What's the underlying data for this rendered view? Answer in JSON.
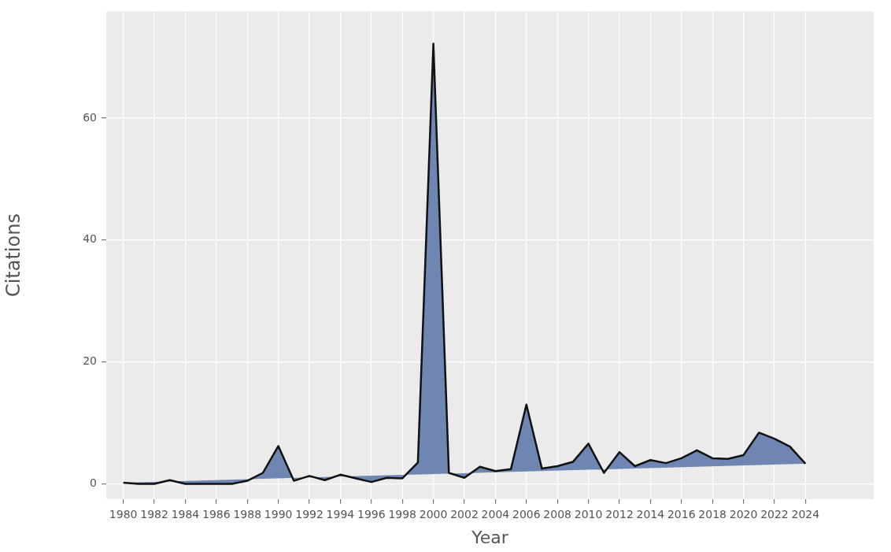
{
  "chart_data": {
    "type": "area",
    "xlabel": "Year",
    "ylabel": "Citations",
    "x": [
      1980,
      1981,
      1982,
      1983,
      1984,
      1985,
      1986,
      1987,
      1988,
      1989,
      1990,
      1991,
      1992,
      1993,
      1994,
      1995,
      1996,
      1997,
      1998,
      1999,
      2000,
      2001,
      2002,
      2003,
      2004,
      2005,
      2006,
      2007,
      2008,
      2009,
      2010,
      2011,
      2012,
      2013,
      2014,
      2015,
      2016,
      2017,
      2018,
      2019,
      2020,
      2021,
      2022,
      2023,
      2024
    ],
    "series": [
      {
        "color": "#6f86b3",
        "values": [
          0.2,
          0,
          0,
          0.6,
          0,
          0,
          0,
          0,
          0.5,
          1.8,
          6.2,
          0.5,
          1.3,
          0.6,
          1.5,
          0.9,
          0.3,
          1.0,
          0.9,
          3.5,
          72.2,
          1.8,
          1.0,
          2.8,
          2.1,
          2.4,
          13,
          2.5,
          2.9,
          3.6,
          6.6,
          1.8,
          5.2,
          2.9,
          3.9,
          3.4,
          4.2,
          5.5,
          4.2,
          4.1,
          4.7,
          8.4,
          7.4,
          6.1,
          3.3
        ]
      }
    ],
    "xlim": [
      1978.9,
      2028.4
    ],
    "xticks": [
      1980,
      1982,
      1984,
      1986,
      1988,
      1990,
      1992,
      1994,
      1996,
      1998,
      2000,
      2002,
      2004,
      2006,
      2008,
      2010,
      2012,
      2014,
      2016,
      2018,
      2020,
      2022,
      2024
    ],
    "ylim": [
      -2.5,
      77.5
    ],
    "yticks": [
      0,
      20,
      40,
      60
    ],
    "grid": true,
    "legend": false,
    "marker": "none",
    "line_style": "solid"
  }
}
